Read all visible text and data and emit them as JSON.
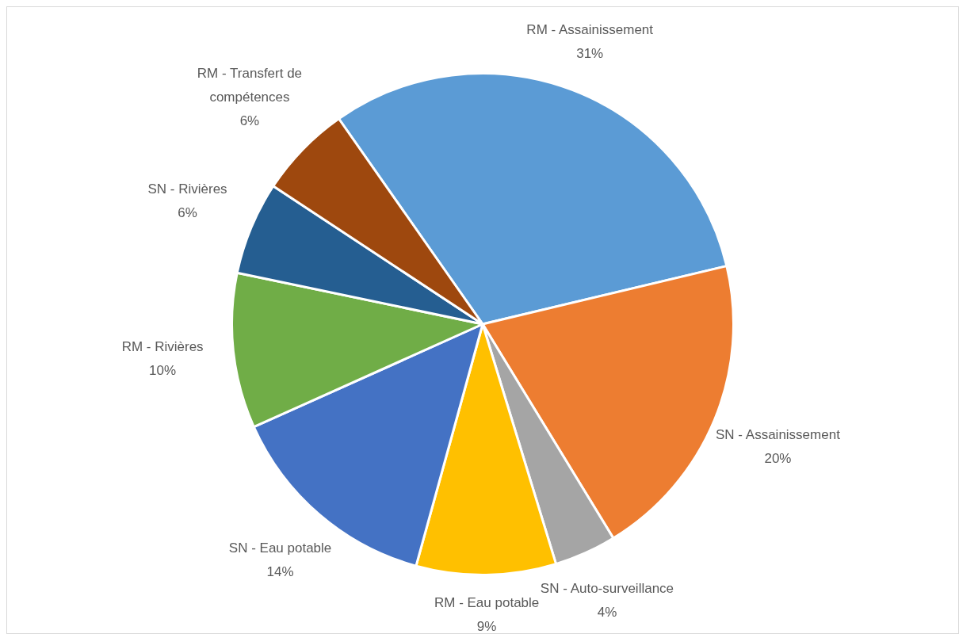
{
  "chart_data": {
    "type": "pie",
    "categories": [
      "RM - Assainissement",
      "SN - Assainissement",
      "SN - Auto-surveillance",
      "RM - Eau potable",
      "SN - Eau potable",
      "RM - Rivières",
      "SN - Rivières",
      "RM - Transfert de compétences"
    ],
    "values": [
      31,
      20,
      4,
      9,
      14,
      10,
      6,
      6
    ],
    "value_labels": [
      "31%",
      "20%",
      "4%",
      "9%",
      "14%",
      "10%",
      "6%",
      "6%"
    ],
    "colors": [
      "#5b9bd5",
      "#ed7d31",
      "#a5a5a5",
      "#ffc000",
      "#4472c4",
      "#70ad47",
      "#255e91",
      "#9e480e"
    ],
    "legend": false
  }
}
